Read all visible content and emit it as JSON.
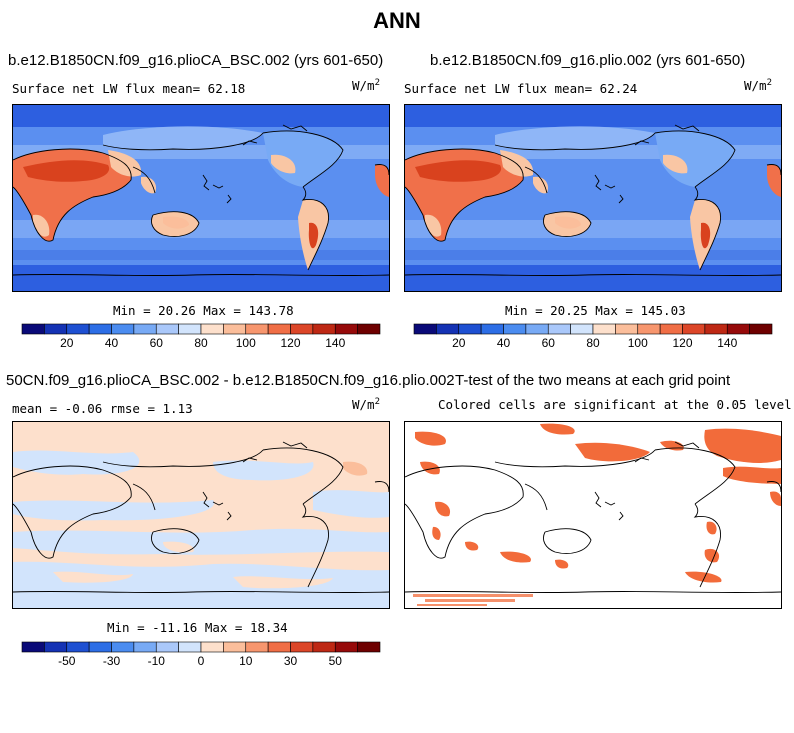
{
  "title": "ANN",
  "panels": {
    "p1": {
      "title": "b.e12.B1850CN.f09_g16.plioCA_BSC.002 (yrs 601-650)",
      "subtitle": "Surface net LW flux mean=  62.18",
      "units_base": "W/m",
      "units_exp": "2",
      "minmax": "Min =  20.26 Max = 143.78"
    },
    "p2": {
      "title": "b.e12.B1850CN.f09_g16.plio.002 (yrs 601-650)",
      "subtitle": "Surface net LW flux mean=  62.24",
      "units_base": "W/m",
      "units_exp": "2",
      "minmax": "Min =  20.25 Max = 145.03"
    },
    "p3": {
      "title": "50CN.f09_g16.plioCA_BSC.002 - b.e12.B1850CN.f09_g16.plio.002",
      "subtitle": "mean =  -0.06     rmse =   1.13",
      "units_base": "W/m",
      "units_exp": "2",
      "minmax": "Min = -11.16 Max =  18.34"
    },
    "p4": {
      "title": "T-test of the two means at each grid point",
      "subtitle": "Colored cells are significant at the 0.05 level"
    }
  },
  "colorbars": {
    "abs": {
      "labels": [
        "20",
        "40",
        "60",
        "80",
        "100",
        "120",
        "140"
      ],
      "colors": [
        "#0a0a78",
        "#1432b4",
        "#1e50d2",
        "#2d6ee6",
        "#4b8cf0",
        "#78aaf5",
        "#aac8fa",
        "#d2e4fc",
        "#fde0cc",
        "#fbbe9b",
        "#f7966e",
        "#f06e46",
        "#dc4628",
        "#be2814",
        "#960a0a",
        "#6e0000"
      ]
    },
    "diff": {
      "labels": [
        "-50",
        "-30",
        "-10",
        "0",
        "10",
        "30",
        "50"
      ],
      "colors": [
        "#0a0a78",
        "#1432b4",
        "#1e50d2",
        "#2d6ee6",
        "#4b8cf0",
        "#78aaf5",
        "#aac8fa",
        "#d2e4fc",
        "#fde0cc",
        "#fbbe9b",
        "#f7966e",
        "#f06e46",
        "#dc4628",
        "#be2814",
        "#960a0a",
        "#6e0000"
      ]
    }
  },
  "map_colors": {
    "ocean_deep": "#2d5fe0",
    "ocean_mid": "#5b8ff0",
    "ocean_light": "#8fb6f7",
    "land_warm": "#f0704a",
    "land_hot": "#d9421e",
    "land_pale": "#f9c6a4",
    "diff_pos": "#fde0cc",
    "diff_neg": "#d2e4fc",
    "sig": "#f26b3a"
  }
}
